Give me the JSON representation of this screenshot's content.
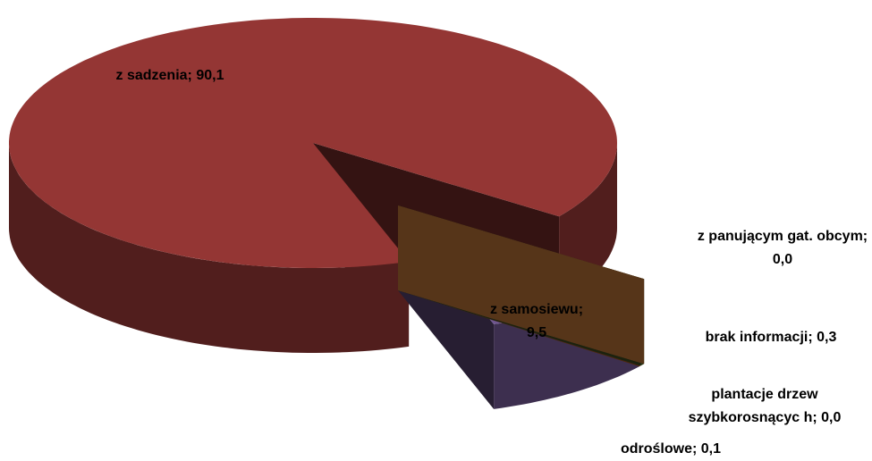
{
  "chart_data": {
    "type": "pie",
    "categories": [
      "z sadzenia",
      "z samosiewu",
      "odroślowe",
      "plantacje drzew szybkorosnącyc h",
      "brak informacji",
      "z panującym gat. obcym"
    ],
    "values": [
      90.1,
      9.5,
      0.1,
      0.0,
      0.3,
      0.0
    ],
    "value_labels": [
      "90,1",
      "9,5",
      "0,1",
      "0,0",
      "0,3",
      "0,0"
    ],
    "label_separator": "; ",
    "colors": [
      "#943634",
      "#6f5690",
      "#e46c0a",
      "#4f81bd",
      "#4f6228",
      "#f79646"
    ]
  }
}
